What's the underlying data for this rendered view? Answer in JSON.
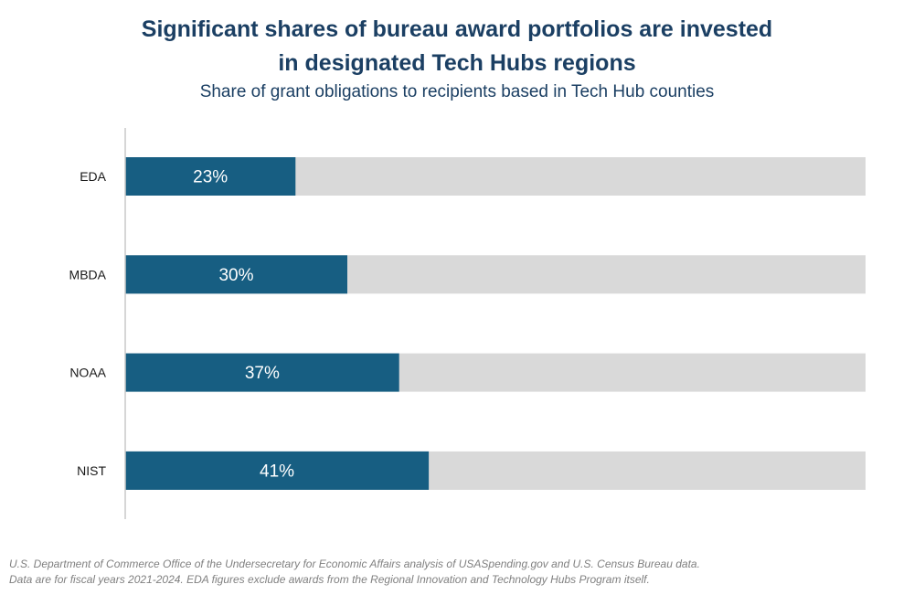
{
  "chart_data": {
    "type": "bar",
    "orientation": "horizontal",
    "title": "Significant shares of bureau award portfolios are invested\nin designated Tech Hubs regions",
    "subtitle": "Share of grant obligations to recipients based in Tech Hub counties",
    "categories": [
      "EDA",
      "MBDA",
      "NOAA",
      "NIST"
    ],
    "values": [
      23,
      30,
      37,
      41
    ],
    "data_labels": [
      "23%",
      "30%",
      "37%",
      "41%"
    ],
    "xlim": [
      0,
      100
    ],
    "bar_color": "#175e82",
    "track_color": "#d9d9d9",
    "label_color": "#ffffff",
    "grid": false,
    "legend": "none"
  },
  "footnote": {
    "line1": "U.S. Department of Commerce Office of the Undersecretary for Economic Affairs analysis of USASpending.gov and U.S. Census Bureau data.",
    "line2": "Data are for fiscal years 2021-2024. EDA figures exclude awards from the Regional Innovation and Technology Hubs Program itself."
  }
}
